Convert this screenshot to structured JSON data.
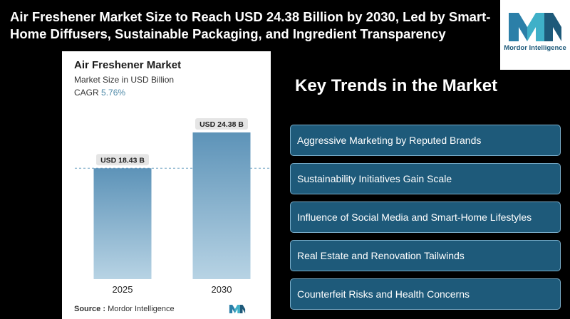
{
  "headline": "Air Freshener Market Size to Reach USD 24.38 Billion by 2030, Led by Smart-Home Diffusers, Sustainable Packaging, and Ingredient Transparency",
  "logo": {
    "text": "Mordor Intelligence"
  },
  "card": {
    "title": "Air Freshener Market",
    "subtitle": "Market Size in USD Billion",
    "cagr_label": "CAGR",
    "cagr_value": "5.76%",
    "source_label": "Source :",
    "source_name": "Mordor Intelligence"
  },
  "chart_data": {
    "type": "bar",
    "categories": [
      "2025",
      "2030"
    ],
    "values": [
      18.43,
      24.38
    ],
    "value_labels": [
      "USD 18.43 B",
      "USD 24.38 B"
    ],
    "reference_line": 18.43,
    "colors": {
      "bar_top": "#5d93b8",
      "bar_bottom": "#b7d3e4",
      "label_bg": "#e5e5e5",
      "ref_line": "#6aa0c0"
    }
  },
  "trends": {
    "title": "Key Trends in the Market",
    "items": [
      "Aggressive Marketing by Reputed Brands",
      "Sustainability Initiatives Gain Scale",
      "Influence of Social Media and Smart-Home Lifestyles",
      "Real Estate and Renovation Tailwinds",
      "Counterfeit Risks and Health Concerns"
    ]
  },
  "colors": {
    "accent": "#1e5a7a",
    "card_bg": "#ffffff",
    "page_bg": "#000000"
  }
}
